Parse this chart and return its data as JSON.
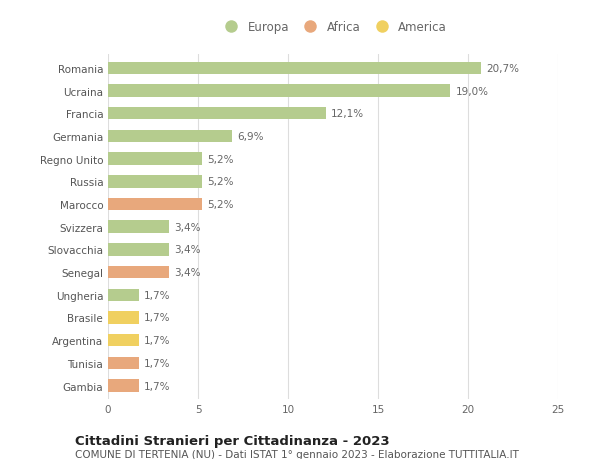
{
  "countries": [
    "Romania",
    "Ucraina",
    "Francia",
    "Germania",
    "Regno Unito",
    "Russia",
    "Marocco",
    "Svizzera",
    "Slovacchia",
    "Senegal",
    "Ungheria",
    "Brasile",
    "Argentina",
    "Tunisia",
    "Gambia"
  ],
  "values": [
    20.7,
    19.0,
    12.1,
    6.9,
    5.2,
    5.2,
    5.2,
    3.4,
    3.4,
    3.4,
    1.7,
    1.7,
    1.7,
    1.7,
    1.7
  ],
  "labels": [
    "20,7%",
    "19,0%",
    "12,1%",
    "6,9%",
    "5,2%",
    "5,2%",
    "5,2%",
    "3,4%",
    "3,4%",
    "3,4%",
    "1,7%",
    "1,7%",
    "1,7%",
    "1,7%",
    "1,7%"
  ],
  "category": [
    "Europa",
    "Europa",
    "Europa",
    "Europa",
    "Europa",
    "Europa",
    "Africa",
    "Europa",
    "Europa",
    "Africa",
    "Europa",
    "America",
    "America",
    "Africa",
    "Africa"
  ],
  "colors": {
    "Europa": "#b5cc8e",
    "Africa": "#e8a87c",
    "America": "#f0d060"
  },
  "legend_items": [
    "Europa",
    "Africa",
    "America"
  ],
  "xlim": [
    0,
    25
  ],
  "xticks": [
    0,
    5,
    10,
    15,
    20,
    25
  ],
  "title_line1": "Cittadini Stranieri per Cittadinanza - 2023",
  "title_line2": "COMUNE DI TERTENIA (NU) - Dati ISTAT 1° gennaio 2023 - Elaborazione TUTTITALIA.IT",
  "background_color": "#ffffff",
  "grid_color": "#dddddd",
  "bar_height": 0.55,
  "label_fontsize": 7.5,
  "tick_fontsize": 7.5,
  "title1_fontsize": 9.5,
  "title2_fontsize": 7.5,
  "legend_fontsize": 8.5
}
